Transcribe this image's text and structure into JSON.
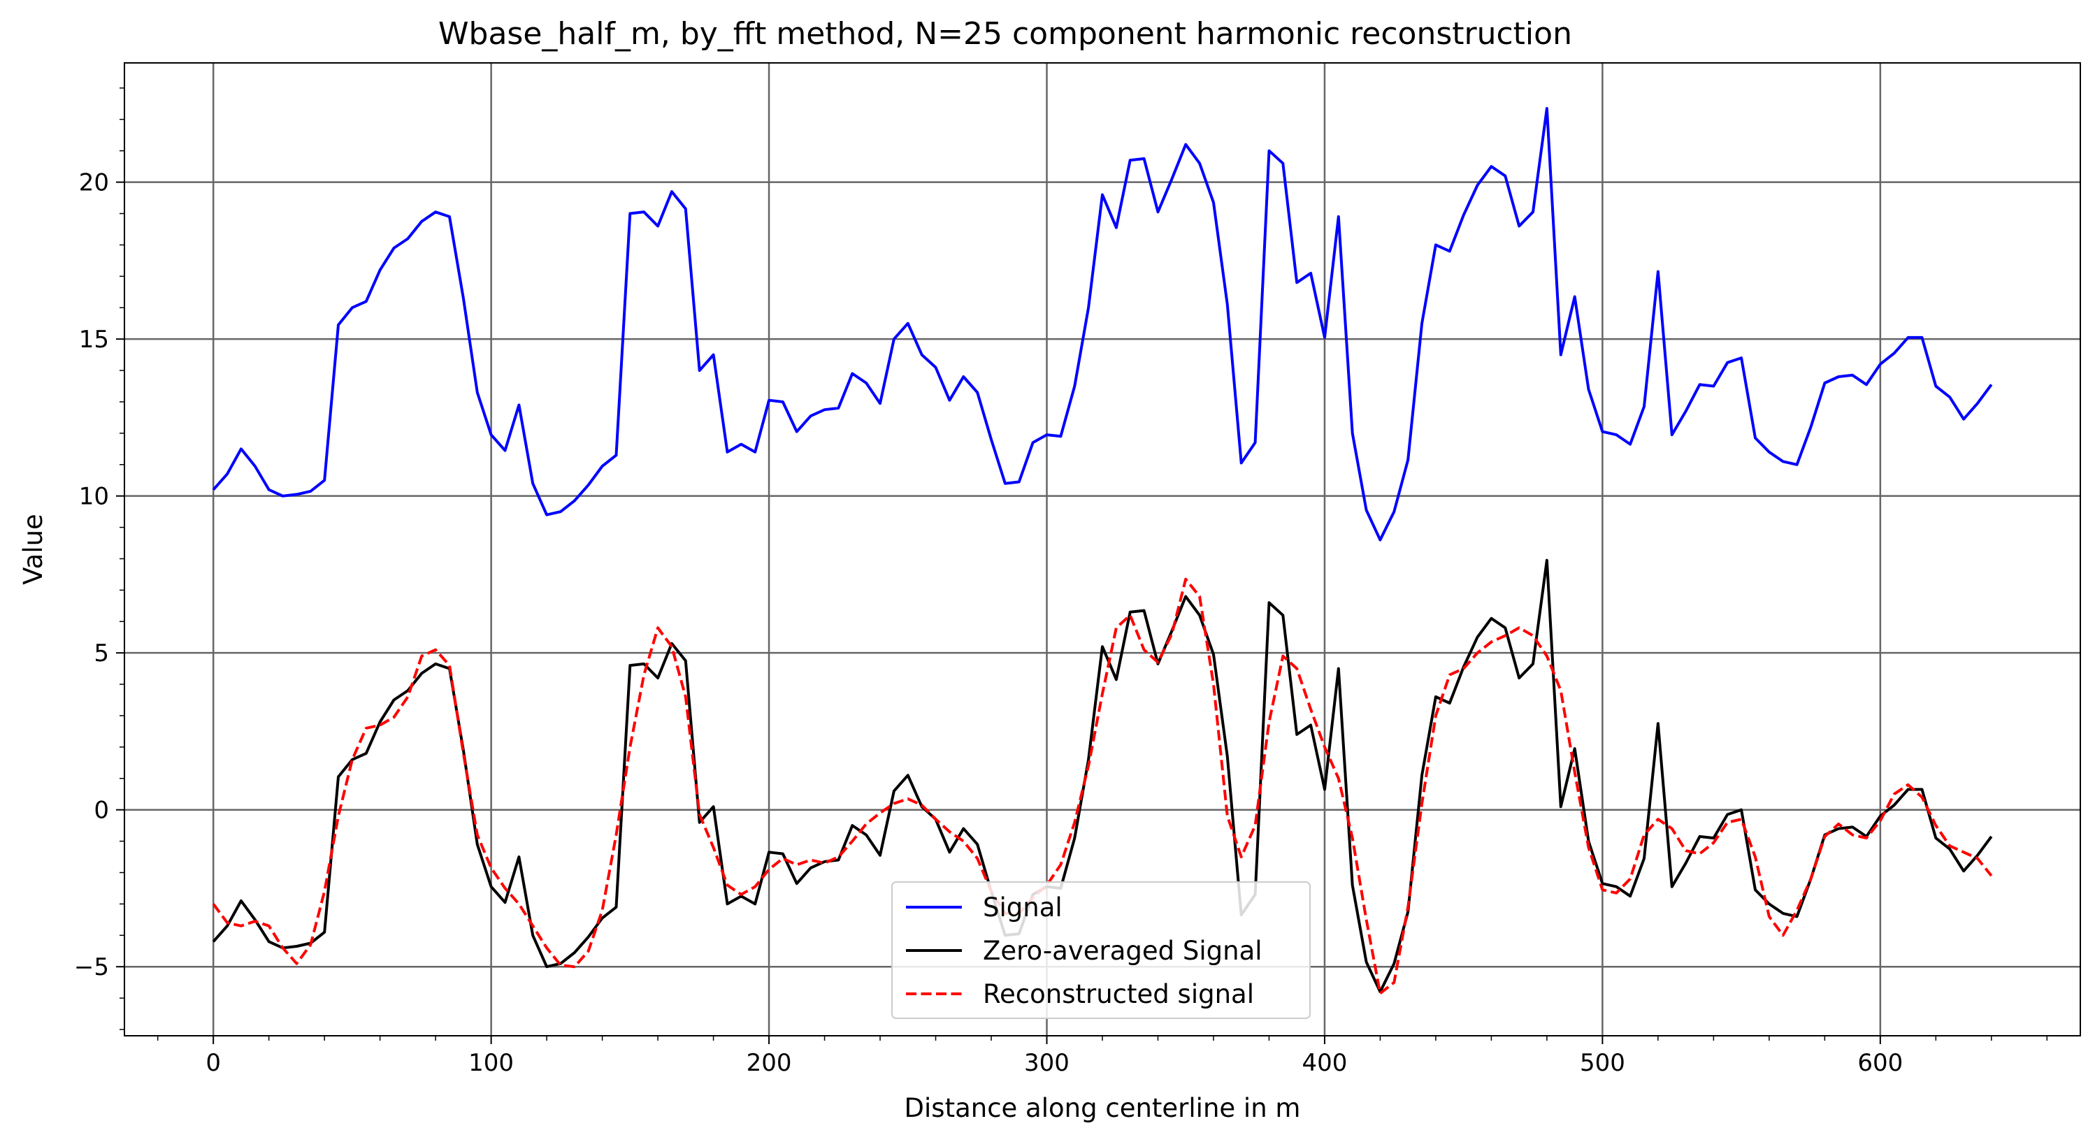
{
  "chart_data": {
    "type": "line",
    "title": "Wbase_half_m, by_fft method, N=25 component harmonic reconstruction",
    "xlabel": "Distance along centerline in m",
    "ylabel": "Value",
    "xlim": [
      -32,
      672
    ],
    "ylim": [
      -7.2,
      23.8
    ],
    "xticks": [
      0,
      100,
      200,
      300,
      400,
      500,
      600
    ],
    "yticks": [
      -5,
      0,
      5,
      10,
      15,
      20
    ],
    "grid": true,
    "legend_position": "lower-center",
    "series": [
      {
        "name": "Signal",
        "color": "#0000ff",
        "dash": "solid",
        "x": [
          0,
          5,
          10,
          15,
          20,
          25,
          30,
          35,
          40,
          45,
          50,
          55,
          60,
          65,
          70,
          75,
          80,
          85,
          90,
          95,
          100,
          105,
          110,
          115,
          120,
          125,
          130,
          135,
          140,
          145,
          150,
          155,
          160,
          165,
          170,
          175,
          180,
          185,
          190,
          195,
          200,
          205,
          210,
          215,
          220,
          225,
          230,
          235,
          240,
          245,
          250,
          255,
          260,
          265,
          270,
          275,
          280,
          285,
          290,
          295,
          300,
          305,
          310,
          315,
          320,
          325,
          330,
          335,
          340,
          345,
          350,
          355,
          360,
          365,
          370,
          375,
          380,
          385,
          390,
          395,
          400,
          405,
          410,
          415,
          420,
          425,
          430,
          435,
          440,
          445,
          450,
          455,
          460,
          465,
          470,
          475,
          480,
          485,
          490,
          495,
          500,
          505,
          510,
          515,
          520,
          525,
          530,
          535,
          540,
          545,
          550,
          555,
          560,
          565,
          570,
          575,
          580,
          585,
          590,
          595,
          600,
          605,
          610,
          615,
          620,
          625,
          630,
          635,
          640
        ],
        "y": [
          10.2,
          10.7,
          11.5,
          10.95,
          10.2,
          10.0,
          10.05,
          10.15,
          10.5,
          15.45,
          16.0,
          16.2,
          17.2,
          17.9,
          18.2,
          18.75,
          19.05,
          18.9,
          16.3,
          13.3,
          11.95,
          11.45,
          12.9,
          10.4,
          9.4,
          9.5,
          9.85,
          10.35,
          10.95,
          11.3,
          19.0,
          19.05,
          18.6,
          19.7,
          19.15,
          14.0,
          14.5,
          11.4,
          11.65,
          11.4,
          13.05,
          13.0,
          12.05,
          12.55,
          12.75,
          12.8,
          13.9,
          13.6,
          12.95,
          15.0,
          15.5,
          14.5,
          14.1,
          13.05,
          13.8,
          13.3,
          11.8,
          10.4,
          10.45,
          11.7,
          11.95,
          11.9,
          13.5,
          16.0,
          19.6,
          18.55,
          20.7,
          20.75,
          19.05,
          20.1,
          21.2,
          20.6,
          19.35,
          16.1,
          11.05,
          11.7,
          21.0,
          20.6,
          16.8,
          17.1,
          15.05,
          18.9,
          12.0,
          9.55,
          8.6,
          9.5,
          11.15,
          15.5,
          18.0,
          17.8,
          18.95,
          19.9,
          20.5,
          20.2,
          18.6,
          19.05,
          22.35,
          14.5,
          16.35,
          13.4,
          12.05,
          11.95,
          11.65,
          12.85,
          17.15,
          11.95,
          12.7,
          13.55,
          13.5,
          14.25,
          14.4,
          11.85,
          11.4,
          11.1,
          11.0,
          12.2,
          13.6,
          13.8,
          13.85,
          13.55,
          14.2,
          14.55,
          15.05,
          15.05,
          13.5,
          13.15,
          12.45,
          12.95,
          13.55
        ]
      },
      {
        "name": "Zero-averaged Signal",
        "color": "#000000",
        "dash": "solid",
        "x": [
          0,
          5,
          10,
          15,
          20,
          25,
          30,
          35,
          40,
          45,
          50,
          55,
          60,
          65,
          70,
          75,
          80,
          85,
          90,
          95,
          100,
          105,
          110,
          115,
          120,
          125,
          130,
          135,
          140,
          145,
          150,
          155,
          160,
          165,
          170,
          175,
          180,
          185,
          190,
          195,
          200,
          205,
          210,
          215,
          220,
          225,
          230,
          235,
          240,
          245,
          250,
          255,
          260,
          265,
          270,
          275,
          280,
          285,
          290,
          295,
          300,
          305,
          310,
          315,
          320,
          325,
          330,
          335,
          340,
          345,
          350,
          355,
          360,
          365,
          370,
          375,
          380,
          385,
          390,
          395,
          400,
          405,
          410,
          415,
          420,
          425,
          430,
          435,
          440,
          445,
          450,
          455,
          460,
          465,
          470,
          475,
          480,
          485,
          490,
          495,
          500,
          505,
          510,
          515,
          520,
          525,
          530,
          535,
          540,
          545,
          550,
          555,
          560,
          565,
          570,
          575,
          580,
          585,
          590,
          595,
          600,
          605,
          610,
          615,
          620,
          625,
          630,
          635,
          640
        ],
        "y": [
          -4.2,
          -3.7,
          -2.9,
          -3.5,
          -4.2,
          -4.4,
          -4.35,
          -4.25,
          -3.9,
          1.05,
          1.6,
          1.8,
          2.8,
          3.5,
          3.8,
          4.35,
          4.65,
          4.5,
          1.9,
          -1.1,
          -2.45,
          -2.95,
          -1.5,
          -4.0,
          -5.0,
          -4.9,
          -4.55,
          -4.05,
          -3.45,
          -3.1,
          4.6,
          4.65,
          4.2,
          5.3,
          4.75,
          -0.4,
          0.1,
          -3.0,
          -2.75,
          -3.0,
          -1.35,
          -1.4,
          -2.35,
          -1.85,
          -1.65,
          -1.6,
          -0.5,
          -0.8,
          -1.45,
          0.6,
          1.1,
          0.1,
          -0.3,
          -1.35,
          -0.6,
          -1.1,
          -2.6,
          -4.0,
          -3.95,
          -2.7,
          -2.45,
          -2.5,
          -0.9,
          1.6,
          5.2,
          4.15,
          6.3,
          6.35,
          4.65,
          5.7,
          6.8,
          6.2,
          4.95,
          1.7,
          -3.35,
          -2.7,
          6.6,
          6.2,
          2.4,
          2.7,
          0.65,
          4.5,
          -2.4,
          -4.85,
          -5.8,
          -4.9,
          -3.25,
          1.1,
          3.6,
          3.4,
          4.55,
          5.5,
          6.1,
          5.8,
          4.2,
          4.65,
          7.95,
          0.1,
          1.95,
          -1.0,
          -2.35,
          -2.45,
          -2.75,
          -1.55,
          2.75,
          -2.45,
          -1.7,
          -0.85,
          -0.9,
          -0.15,
          0.0,
          -2.55,
          -3.0,
          -3.3,
          -3.4,
          -2.2,
          -0.8,
          -0.6,
          -0.55,
          -0.85,
          -0.2,
          0.15,
          0.65,
          0.65,
          -0.9,
          -1.25,
          -1.95,
          -1.45,
          -0.85
        ]
      },
      {
        "name": "Reconstructed signal",
        "color": "#ff0000",
        "dash": "dashed",
        "x": [
          0,
          5,
          10,
          15,
          20,
          25,
          30,
          35,
          40,
          45,
          50,
          55,
          60,
          65,
          70,
          75,
          80,
          85,
          90,
          95,
          100,
          105,
          110,
          115,
          120,
          125,
          130,
          135,
          140,
          145,
          150,
          155,
          160,
          165,
          170,
          175,
          180,
          185,
          190,
          195,
          200,
          205,
          210,
          215,
          220,
          225,
          230,
          235,
          240,
          245,
          250,
          255,
          260,
          265,
          270,
          275,
          280,
          285,
          290,
          295,
          300,
          305,
          310,
          315,
          320,
          325,
          330,
          335,
          340,
          345,
          350,
          355,
          360,
          365,
          370,
          375,
          380,
          385,
          390,
          395,
          400,
          405,
          410,
          415,
          420,
          425,
          430,
          435,
          440,
          445,
          450,
          455,
          460,
          465,
          470,
          475,
          480,
          485,
          490,
          495,
          500,
          505,
          510,
          515,
          520,
          525,
          530,
          535,
          540,
          545,
          550,
          555,
          560,
          565,
          570,
          575,
          580,
          585,
          590,
          595,
          600,
          605,
          610,
          615,
          620,
          625,
          630,
          635,
          640
        ],
        "y": [
          -3.0,
          -3.6,
          -3.7,
          -3.55,
          -3.7,
          -4.4,
          -4.9,
          -4.3,
          -2.6,
          -0.2,
          1.6,
          2.6,
          2.7,
          2.95,
          3.6,
          4.9,
          5.1,
          4.6,
          1.8,
          -0.8,
          -1.85,
          -2.5,
          -3.0,
          -3.7,
          -4.4,
          -4.95,
          -5.0,
          -4.5,
          -3.2,
          -0.8,
          2.0,
          4.3,
          5.8,
          5.2,
          3.6,
          -0.15,
          -1.2,
          -2.4,
          -2.7,
          -2.45,
          -1.9,
          -1.55,
          -1.75,
          -1.6,
          -1.7,
          -1.5,
          -1.0,
          -0.45,
          -0.1,
          0.2,
          0.35,
          0.15,
          -0.3,
          -0.7,
          -1.0,
          -1.55,
          -2.6,
          -3.3,
          -3.3,
          -2.8,
          -2.4,
          -1.75,
          -0.4,
          1.4,
          3.7,
          5.8,
          6.2,
          5.1,
          4.7,
          5.6,
          7.35,
          6.8,
          4.0,
          -0.2,
          -1.5,
          -0.5,
          2.8,
          4.9,
          4.5,
          3.2,
          2.0,
          1.0,
          -0.9,
          -3.5,
          -5.85,
          -5.5,
          -3.1,
          0.2,
          3.0,
          4.3,
          4.5,
          5.0,
          5.35,
          5.55,
          5.8,
          5.55,
          4.9,
          3.8,
          1.2,
          -1.2,
          -2.55,
          -2.65,
          -2.2,
          -0.8,
          -0.3,
          -0.6,
          -1.3,
          -1.4,
          -1.05,
          -0.4,
          -0.3,
          -1.5,
          -3.4,
          -4.0,
          -3.2,
          -2.2,
          -0.85,
          -0.45,
          -0.8,
          -0.9,
          -0.35,
          0.5,
          0.8,
          0.4,
          -0.5,
          -1.15,
          -1.35,
          -1.55,
          -2.1
        ]
      }
    ]
  }
}
